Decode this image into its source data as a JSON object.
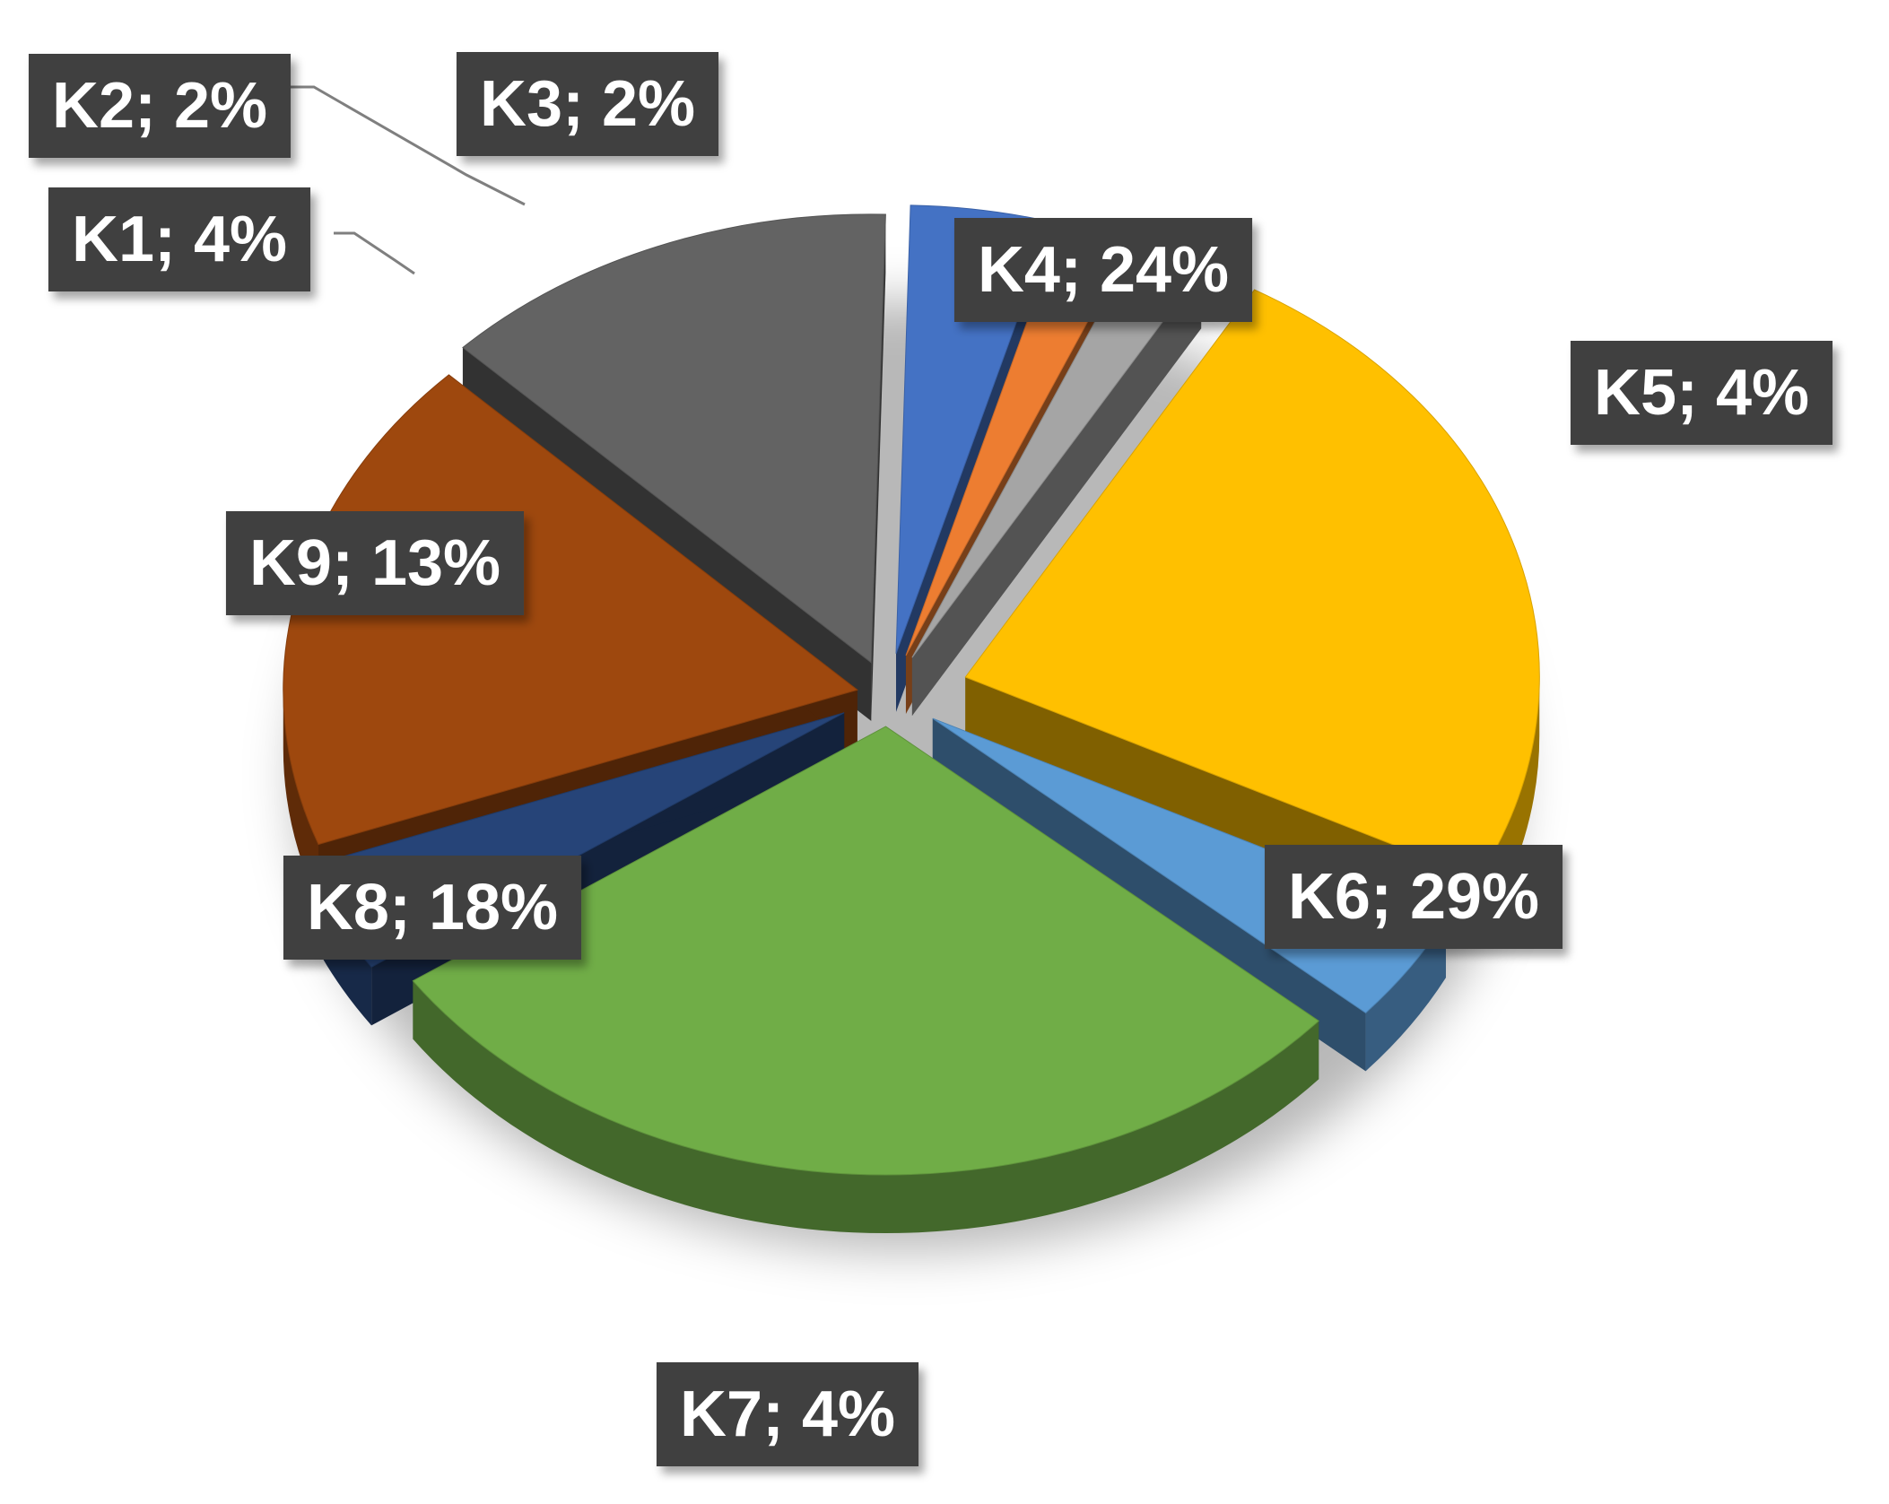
{
  "chart_data": {
    "type": "pie",
    "title": "",
    "legend": "none",
    "slices": [
      {
        "name": "K1",
        "value": 4,
        "label": "K1; 4%",
        "color": "#4472C4"
      },
      {
        "name": "K2",
        "value": 2,
        "label": "K2; 2%",
        "color": "#ED7D31"
      },
      {
        "name": "K3",
        "value": 2,
        "label": "K3; 2%",
        "color": "#A5A5A5"
      },
      {
        "name": "K4",
        "value": 24,
        "label": "K4; 24%",
        "color": "#FFC000"
      },
      {
        "name": "K5",
        "value": 4,
        "label": "K5; 4%",
        "color": "#5B9BD5"
      },
      {
        "name": "K6",
        "value": 29,
        "label": "K6; 29%",
        "color": "#70AD47"
      },
      {
        "name": "K7",
        "value": 4,
        "label": "K7; 4%",
        "color": "#264478"
      },
      {
        "name": "K8",
        "value": 18,
        "label": "K8; 18%",
        "color": "#9E480E"
      },
      {
        "name": "K9",
        "value": 13,
        "label": "K9; 13%",
        "color": "#636363"
      }
    ]
  }
}
